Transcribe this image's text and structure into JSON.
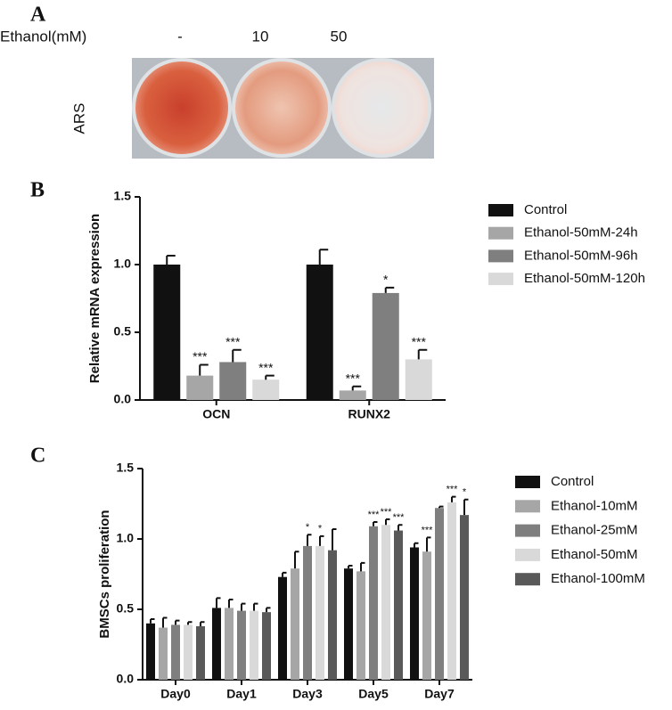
{
  "image_panel": {
    "panel_label": "A",
    "row_label": "Ethanol(mM)",
    "columns": [
      "-",
      "10",
      "50"
    ],
    "stain_label": "ARS"
  },
  "chart_data": [
    {
      "type": "bar",
      "panel_label": "B",
      "y_label": "Relative mRNA expression",
      "categories": [
        "OCN",
        "RUNX2"
      ],
      "ylim": [
        0,
        1.5
      ],
      "yticks": [
        {
          "value": 0,
          "label": "0.0"
        },
        0.5,
        {
          "value": 1,
          "label": "1.0"
        },
        1.5
      ],
      "series": [
        {
          "name": "Control",
          "color": "#111111",
          "values": [
            1.0,
            1.0
          ],
          "errors": [
            0.066,
            0.11
          ],
          "annotations": [
            null,
            null
          ]
        },
        {
          "name": "Ethanol-50mM-24h",
          "color": "#a6a6a6",
          "values": [
            0.18,
            0.07
          ],
          "errors": [
            0.08,
            0.03
          ],
          "annotations": [
            "***",
            "***"
          ]
        },
        {
          "name": "Ethanol-50mM-96h",
          "color": "#7f7f7f",
          "values": [
            0.28,
            0.79
          ],
          "errors": [
            0.09,
            0.04
          ],
          "annotations": [
            "***",
            "*"
          ]
        },
        {
          "name": "Ethanol-50mM-120h",
          "color": "#d9d9d9",
          "values": [
            0.15,
            0.3
          ],
          "errors": [
            0.03,
            0.07
          ],
          "annotations": [
            "***",
            "***"
          ]
        }
      ]
    },
    {
      "type": "bar",
      "panel_label": "C",
      "y_label": "BMSCs proliferation",
      "categories": [
        "Day0",
        "Day1",
        "Day3",
        "Day5",
        "Day7"
      ],
      "ylim": [
        0,
        1.5
      ],
      "yticks": [
        {
          "value": 0,
          "label": "0.0"
        },
        0.5,
        {
          "value": 1,
          "label": "1.0"
        },
        1.5
      ],
      "series": [
        {
          "name": "Control",
          "color": "#111111",
          "values": [
            0.4,
            0.51,
            0.73,
            0.79,
            0.94
          ],
          "errors": [
            0.03,
            0.07,
            0.03,
            0.02,
            0.03
          ],
          "annotations": [
            null,
            null,
            null,
            null,
            null
          ]
        },
        {
          "name": "Ethanol-10mM",
          "color": "#a6a6a6",
          "values": [
            0.37,
            0.51,
            0.79,
            0.77,
            0.91
          ],
          "errors": [
            0.07,
            0.06,
            0.12,
            0.06,
            0.1
          ],
          "annotations": [
            null,
            null,
            null,
            null,
            "***"
          ]
        },
        {
          "name": "Ethanol-25mM",
          "color": "#7f7f7f",
          "values": [
            0.39,
            0.49,
            0.95,
            1.09,
            1.22
          ],
          "errors": [
            0.03,
            0.05,
            0.08,
            0.03,
            0.01
          ],
          "annotations": [
            null,
            null,
            "*",
            "***",
            null
          ]
        },
        {
          "name": "Ethanol-50mM",
          "color": "#d9d9d9",
          "values": [
            0.39,
            0.49,
            0.95,
            1.1,
            1.26
          ],
          "errors": [
            0.02,
            0.05,
            0.07,
            0.04,
            0.04
          ],
          "annotations": [
            null,
            null,
            "*",
            "***",
            "***"
          ]
        },
        {
          "name": "Ethanol-100mM",
          "color": "#595959",
          "values": [
            0.38,
            0.48,
            0.92,
            1.06,
            1.17
          ],
          "errors": [
            0.03,
            0.03,
            0.15,
            0.04,
            0.11
          ],
          "annotations": [
            null,
            null,
            null,
            "***",
            "*"
          ]
        }
      ]
    }
  ]
}
